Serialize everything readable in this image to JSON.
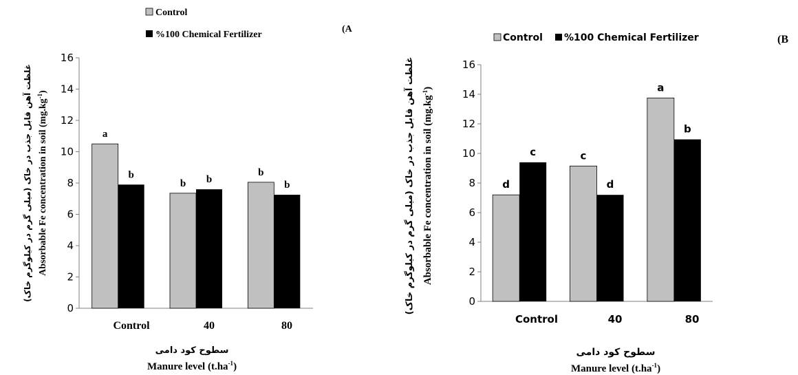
{
  "colors": {
    "control": "#c0c0c0",
    "chemical": "#000000",
    "axis": "#7f7f7f",
    "text": "#000000"
  },
  "chart_data": [
    {
      "type": "bar",
      "panel_label": "(A",
      "categories": [
        "Control",
        "40",
        "80"
      ],
      "series": [
        {
          "name": "Control",
          "values": [
            10.5,
            7.35,
            8.05
          ],
          "letters": [
            "a",
            "b",
            "b"
          ]
        },
        {
          "name": "%100 Chemical Fertilizer",
          "values": [
            7.9,
            7.6,
            7.25
          ],
          "letters": [
            "b",
            "b",
            "b"
          ]
        }
      ],
      "ylim": [
        0,
        16
      ],
      "yticks": [
        0,
        2,
        4,
        6,
        8,
        10,
        12,
        14,
        16
      ],
      "ylabel_fa": "غلظت آهن قابل جذب در خاک (میلی گرم در کیلوگرم خاک)",
      "ylabel_en": "Absorbable Fe concentration in soil (mg.kg",
      "ylabel_en_sup": "-1",
      "ylabel_en_end": ")",
      "xlabel_fa": "سطوح کود دامی",
      "xlabel_en": "Manure level (t.ha",
      "xlabel_en_sup": "-1",
      "xlabel_en_end": ")",
      "legend_position": "top-left",
      "grid": false
    },
    {
      "type": "bar",
      "panel_label": "(B",
      "categories": [
        "Control",
        "40",
        "80"
      ],
      "series": [
        {
          "name": "Control",
          "values": [
            7.2,
            9.15,
            13.75
          ],
          "letters": [
            "d",
            "c",
            "a"
          ]
        },
        {
          "name": "%100 Chemical Fertilizer",
          "values": [
            9.4,
            7.2,
            10.95
          ],
          "letters": [
            "c",
            "d",
            "b"
          ]
        }
      ],
      "ylim": [
        0,
        16
      ],
      "yticks": [
        0,
        2,
        4,
        6,
        8,
        10,
        12,
        14,
        16
      ],
      "ylabel_fa": "غلظت آهن قابل جذب در خاک (میلی گرم در کیلوگرم خاک)",
      "ylabel_en": "Absorbable Fe concentration in soil (mg.kg",
      "ylabel_en_sup": "-1",
      "ylabel_en_end": ")",
      "xlabel_fa": "سطوح کود دامی",
      "xlabel_en": "Manure level (t.ha",
      "xlabel_en_sup": "-1",
      "xlabel_en_end": ")",
      "legend_position": "top",
      "grid": false
    }
  ]
}
